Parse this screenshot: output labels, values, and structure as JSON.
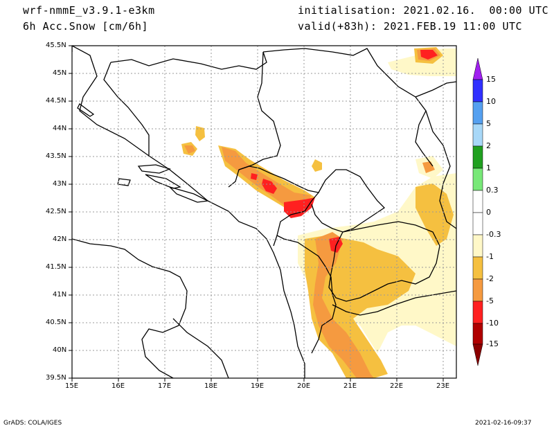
{
  "header": {
    "model": "wrf-nmmE_v3.9.1-e3km",
    "field": "6h Acc.Snow [cm/6h]",
    "init": "initialisation: 2021.02.16.  00:00 UTC",
    "valid": "valid(+83h): 2021.FEB.19 11:00 UTC"
  },
  "map": {
    "lat_labels": [
      "45.5N",
      "45N",
      "44.5N",
      "44N",
      "43.5N",
      "43N",
      "42.5N",
      "42N",
      "41.5N",
      "41N",
      "40.5N",
      "40N",
      "39.5N"
    ],
    "lon_labels": [
      "15E",
      "16E",
      "17E",
      "18E",
      "19E",
      "20E",
      "21E",
      "22E",
      "23E"
    ]
  },
  "legend": {
    "labels": [
      "15",
      "10",
      "5",
      "2",
      "1",
      "0.3",
      "0",
      "-0.3",
      "-1",
      "-2",
      "-5",
      "-10",
      "-15"
    ],
    "colors": [
      "#a020f0",
      "#3030ff",
      "#55a0f0",
      "#a8d8f8",
      "#20a020",
      "#78e878",
      "#ffffff",
      "#ffffff",
      "#fff8c8",
      "#f5c040",
      "#f59a40",
      "#ff2020",
      "#b00000"
    ]
  },
  "footer": {
    "left": "GrADS: COLA/IGES",
    "right": "2021-02-16-09:37"
  }
}
